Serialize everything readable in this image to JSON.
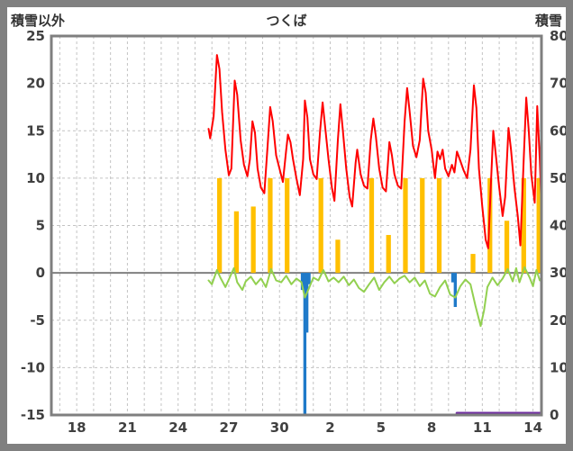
{
  "header": {
    "left_label": "積雪以外",
    "title": "つくば",
    "right_label": "積雪"
  },
  "colors": {
    "frame_border": "#808080",
    "plot_border": "#7f7f7f",
    "grid": "#c3c3c3",
    "zero_line": "#808080",
    "tick_text": "#404040",
    "temperature": "#ff0000",
    "sunshine": "#ffc000",
    "precipitation": "#1f7ac9",
    "green_series": "#92d050",
    "snow": "#7030a0"
  },
  "chart_data": {
    "type": "composite",
    "title": "つくば",
    "left_axis": {
      "label": "積雪以外",
      "min": -15,
      "max": 25,
      "ticks": [
        25,
        20,
        15,
        10,
        5,
        0,
        -5,
        -10,
        -15
      ]
    },
    "right_axis": {
      "label": "積雪",
      "min": 0,
      "max": 80,
      "ticks": [
        80,
        70,
        60,
        50,
        40,
        30,
        20,
        10,
        0
      ]
    },
    "x_axis": {
      "min": 16.5,
      "max": 45.5,
      "grid_interval": 1,
      "tick_days": [
        18,
        21,
        24,
        27,
        30,
        33,
        36,
        39,
        42,
        45
      ],
      "tick_labels": [
        "18",
        "21",
        "24",
        "27",
        "30",
        "2",
        "5",
        "8",
        "11",
        "14"
      ]
    },
    "series": [
      {
        "name": "sunshine",
        "type": "bar",
        "axis": "left",
        "color": "#ffc000",
        "bar_width_days": 0.28,
        "points": [
          [
            26.45,
            10
          ],
          [
            27.45,
            6.5
          ],
          [
            28.45,
            7
          ],
          [
            29.45,
            10
          ],
          [
            30.45,
            10
          ],
          [
            32.45,
            10
          ],
          [
            33.45,
            3.5
          ],
          [
            35.45,
            10
          ],
          [
            36.45,
            4
          ],
          [
            37.45,
            10
          ],
          [
            38.45,
            10
          ],
          [
            39.45,
            10
          ],
          [
            41.45,
            2
          ],
          [
            42.45,
            10
          ],
          [
            43.45,
            5.5
          ],
          [
            44.45,
            10
          ],
          [
            45.35,
            10
          ]
        ]
      },
      {
        "name": "precipitation",
        "type": "bar",
        "axis": "left",
        "color": "#1f7ac9",
        "bar_width_days": 0.18,
        "points": [
          [
            31.35,
            -1.8
          ],
          [
            31.5,
            -15
          ],
          [
            31.62,
            -6.3
          ],
          [
            31.75,
            -1.2
          ],
          [
            40.25,
            -1
          ],
          [
            40.4,
            -3.6
          ]
        ]
      },
      {
        "name": "green-series",
        "type": "line",
        "axis": "left",
        "color": "#92d050",
        "points": [
          [
            25.8,
            -0.8
          ],
          [
            26.0,
            -1.2
          ],
          [
            26.3,
            0.3
          ],
          [
            26.5,
            -0.5
          ],
          [
            26.8,
            -1.5
          ],
          [
            27.0,
            -0.7
          ],
          [
            27.3,
            0.5
          ],
          [
            27.5,
            -1
          ],
          [
            27.8,
            -1.8
          ],
          [
            28.0,
            -0.9
          ],
          [
            28.3,
            -0.4
          ],
          [
            28.6,
            -1.2
          ],
          [
            28.9,
            -0.6
          ],
          [
            29.2,
            -1.5
          ],
          [
            29.5,
            0.4
          ],
          [
            29.8,
            -0.8
          ],
          [
            30.1,
            -1
          ],
          [
            30.4,
            -0.3
          ],
          [
            30.7,
            -1.2
          ],
          [
            31.0,
            -0.6
          ],
          [
            31.3,
            -1
          ],
          [
            31.5,
            -2.6
          ],
          [
            31.7,
            -1.8
          ],
          [
            32.0,
            -0.5
          ],
          [
            32.3,
            -0.8
          ],
          [
            32.6,
            0.3
          ],
          [
            32.9,
            -0.9
          ],
          [
            33.2,
            -0.5
          ],
          [
            33.5,
            -1
          ],
          [
            33.8,
            -0.4
          ],
          [
            34.1,
            -1.3
          ],
          [
            34.4,
            -0.7
          ],
          [
            34.7,
            -1.6
          ],
          [
            35.0,
            -2
          ],
          [
            35.3,
            -1.2
          ],
          [
            35.6,
            -0.5
          ],
          [
            35.9,
            -1.8
          ],
          [
            36.2,
            -1
          ],
          [
            36.5,
            -0.4
          ],
          [
            36.8,
            -1.1
          ],
          [
            37.1,
            -0.6
          ],
          [
            37.4,
            -0.3
          ],
          [
            37.7,
            -1
          ],
          [
            38.0,
            -0.5
          ],
          [
            38.3,
            -1.4
          ],
          [
            38.6,
            -0.8
          ],
          [
            38.9,
            -2.2
          ],
          [
            39.2,
            -2.5
          ],
          [
            39.5,
            -1.5
          ],
          [
            39.8,
            -0.8
          ],
          [
            40.1,
            -2.3
          ],
          [
            40.4,
            -2.6
          ],
          [
            40.7,
            -1.4
          ],
          [
            41.0,
            -0.7
          ],
          [
            41.3,
            -1.2
          ],
          [
            41.6,
            -3.5
          ],
          [
            41.9,
            -5.6
          ],
          [
            42.1,
            -4
          ],
          [
            42.3,
            -1.5
          ],
          [
            42.6,
            -0.5
          ],
          [
            42.9,
            -1.3
          ],
          [
            43.2,
            -0.6
          ],
          [
            43.5,
            0.4
          ],
          [
            43.8,
            -0.9
          ],
          [
            44.0,
            0.5
          ],
          [
            44.2,
            -1
          ],
          [
            44.5,
            0.6
          ],
          [
            44.8,
            -0.5
          ],
          [
            45.0,
            -1.4
          ],
          [
            45.2,
            0.3
          ],
          [
            45.4,
            -0.8
          ],
          [
            45.5,
            -0.5
          ]
        ]
      },
      {
        "name": "temperature",
        "type": "line",
        "axis": "left",
        "color": "#ff0000",
        "points": [
          [
            25.8,
            15.2
          ],
          [
            25.9,
            14.2
          ],
          [
            26.1,
            16.5
          ],
          [
            26.3,
            23
          ],
          [
            26.45,
            21.5
          ],
          [
            26.6,
            17
          ],
          [
            26.8,
            13
          ],
          [
            27.0,
            10.3
          ],
          [
            27.15,
            11
          ],
          [
            27.35,
            20.3
          ],
          [
            27.5,
            18.8
          ],
          [
            27.7,
            14
          ],
          [
            27.9,
            11.4
          ],
          [
            28.1,
            10.2
          ],
          [
            28.25,
            12
          ],
          [
            28.4,
            16
          ],
          [
            28.55,
            14.8
          ],
          [
            28.7,
            11
          ],
          [
            28.9,
            9
          ],
          [
            29.1,
            8.4
          ],
          [
            29.3,
            13.5
          ],
          [
            29.45,
            17.5
          ],
          [
            29.6,
            16
          ],
          [
            29.8,
            12.4
          ],
          [
            30.0,
            11
          ],
          [
            30.2,
            9.6
          ],
          [
            30.4,
            13
          ],
          [
            30.5,
            14.6
          ],
          [
            30.65,
            13.8
          ],
          [
            30.8,
            12
          ],
          [
            31.0,
            10
          ],
          [
            31.2,
            8.2
          ],
          [
            31.4,
            12
          ],
          [
            31.5,
            18.2
          ],
          [
            31.65,
            16.4
          ],
          [
            31.8,
            12
          ],
          [
            32.0,
            10.4
          ],
          [
            32.2,
            9.9
          ],
          [
            32.4,
            15
          ],
          [
            32.55,
            18
          ],
          [
            32.7,
            15.4
          ],
          [
            32.9,
            12
          ],
          [
            33.1,
            9
          ],
          [
            33.25,
            7.6
          ],
          [
            33.45,
            14
          ],
          [
            33.6,
            17.8
          ],
          [
            33.75,
            15
          ],
          [
            33.95,
            11
          ],
          [
            34.15,
            8
          ],
          [
            34.3,
            7
          ],
          [
            34.5,
            11.6
          ],
          [
            34.6,
            13
          ],
          [
            34.8,
            10.4
          ],
          [
            35.0,
            9.2
          ],
          [
            35.2,
            8.9
          ],
          [
            35.4,
            14
          ],
          [
            35.55,
            16.3
          ],
          [
            35.7,
            14.4
          ],
          [
            35.9,
            11
          ],
          [
            36.1,
            9
          ],
          [
            36.3,
            8.6
          ],
          [
            36.5,
            13.8
          ],
          [
            36.65,
            12.4
          ],
          [
            36.8,
            10.4
          ],
          [
            37.0,
            9.2
          ],
          [
            37.2,
            8.9
          ],
          [
            37.4,
            16
          ],
          [
            37.55,
            19.5
          ],
          [
            37.7,
            17
          ],
          [
            37.9,
            13.4
          ],
          [
            38.1,
            12.2
          ],
          [
            38.3,
            14
          ],
          [
            38.5,
            20.5
          ],
          [
            38.65,
            19
          ],
          [
            38.8,
            15
          ],
          [
            39.0,
            13
          ],
          [
            39.2,
            10
          ],
          [
            39.35,
            12.8
          ],
          [
            39.5,
            12
          ],
          [
            39.65,
            13
          ],
          [
            39.8,
            11
          ],
          [
            40.0,
            10.2
          ],
          [
            40.2,
            11.4
          ],
          [
            40.35,
            10.6
          ],
          [
            40.5,
            12.8
          ],
          [
            40.7,
            11.8
          ],
          [
            40.9,
            10.8
          ],
          [
            41.1,
            10
          ],
          [
            41.3,
            13
          ],
          [
            41.5,
            19.8
          ],
          [
            41.65,
            17.4
          ],
          [
            41.8,
            11
          ],
          [
            42.0,
            7
          ],
          [
            42.2,
            3.5
          ],
          [
            42.35,
            2.6
          ],
          [
            42.5,
            9
          ],
          [
            42.65,
            15
          ],
          [
            42.8,
            12.4
          ],
          [
            43.0,
            9
          ],
          [
            43.2,
            6
          ],
          [
            43.35,
            8
          ],
          [
            43.55,
            15.3
          ],
          [
            43.7,
            13
          ],
          [
            43.9,
            9
          ],
          [
            44.1,
            6
          ],
          [
            44.25,
            2.9
          ],
          [
            44.45,
            12
          ],
          [
            44.6,
            18.5
          ],
          [
            44.75,
            15
          ],
          [
            44.9,
            10.4
          ],
          [
            45.1,
            7.4
          ],
          [
            45.25,
            17.6
          ],
          [
            45.4,
            12
          ],
          [
            45.5,
            7
          ]
        ]
      },
      {
        "name": "snow-depth",
        "type": "line",
        "axis": "right",
        "color": "#7030a0",
        "points": [
          [
            40.5,
            0
          ],
          [
            45.5,
            0
          ]
        ]
      }
    ]
  }
}
